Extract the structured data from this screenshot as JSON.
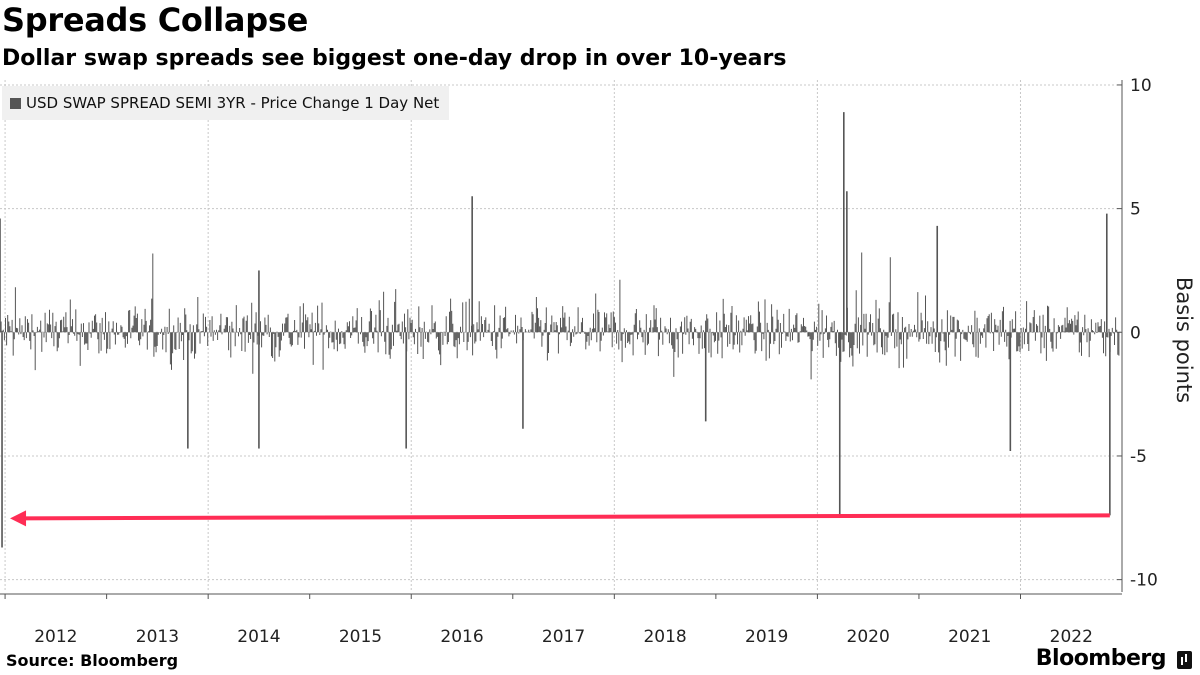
{
  "chart_data": {
    "type": "bar",
    "title": "Spreads Collapse",
    "subtitle": "Dollar swap spreads see biggest one-day drop in over 10-years",
    "legend_label": "USD SWAP SPREAD SEMI 3YR - Price Change 1 Day Net",
    "series": [
      {
        "name": "USD SWAP SPREAD SEMI 3YR - Price Change 1 Day Net",
        "color": "#555555"
      }
    ],
    "ylabel": "Basis points",
    "xlabel": "",
    "ylim": [
      -10.5,
      10.2
    ],
    "yticks": [
      10,
      5,
      0,
      -5,
      -10
    ],
    "ytick_labels": [
      "10",
      "5",
      "0",
      "-5",
      "-10"
    ],
    "x_range": [
      2011.95,
      2022.98
    ],
    "xtick_labels": [
      "2012",
      "2013",
      "2014",
      "2015",
      "2016",
      "2017",
      "2018",
      "2019",
      "2020",
      "2021",
      "2022"
    ],
    "x_gridlines": [
      2012.0,
      2014.0,
      2016.0,
      2018.0,
      2020.0,
      2022.0
    ],
    "grid": true,
    "legend_position": "top-left",
    "notable_moves": [
      {
        "date": 2011.95,
        "value": 4.6
      },
      {
        "date": 2011.97,
        "value": -8.7
      },
      {
        "date": 2013.8,
        "value": -4.7
      },
      {
        "date": 2014.5,
        "value": 2.5
      },
      {
        "date": 2014.5,
        "value": -4.7
      },
      {
        "date": 2015.95,
        "value": -4.7
      },
      {
        "date": 2016.6,
        "value": 5.5
      },
      {
        "date": 2017.1,
        "value": -3.9
      },
      {
        "date": 2018.9,
        "value": -3.6
      },
      {
        "date": 2020.22,
        "value": -7.4
      },
      {
        "date": 2020.26,
        "value": 8.9
      },
      {
        "date": 2020.29,
        "value": 5.7
      },
      {
        "date": 2021.18,
        "value": 4.3
      },
      {
        "date": 2021.9,
        "value": -4.8
      },
      {
        "date": 2022.85,
        "value": 4.8
      },
      {
        "date": 2022.88,
        "value": -7.4
      }
    ],
    "annotation": {
      "type": "arrow",
      "color": "#ff2d55",
      "from_date": 2022.88,
      "to_date": 2011.97,
      "value": -7.4
    }
  },
  "source_text": "Source: Bloomberg",
  "brand_text": "Bloomberg"
}
